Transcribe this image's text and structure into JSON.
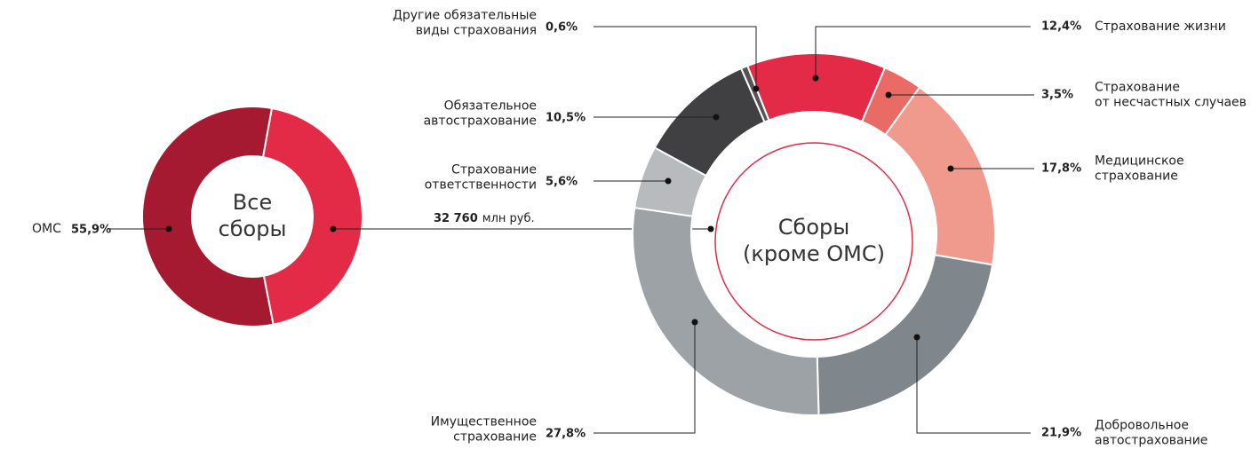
{
  "chart_data": [
    {
      "type": "pie",
      "center_label": "Все\nсборы",
      "categories": [
        "ОМС",
        null
      ],
      "values": [
        55.9,
        44.1
      ],
      "value_labels": [
        "55,9%",
        null
      ],
      "colors": [
        "#a51a30",
        "#e32a46"
      ],
      "annotation": {
        "amount": "32 760",
        "unit": "млн руб."
      }
    },
    {
      "type": "pie",
      "center_label": "Сборы\n(кроме ОМС)",
      "categories": [
        "Страхование жизни",
        "Страхование\nот несчастных случаев",
        "Медицинское\nстрахование",
        "Добровольное\nавтострахование",
        "Имущественное\nстрахование",
        "Страхование\nответственности",
        "Обязательное\nавтострахование",
        "Другие обязательные\nвиды страхования"
      ],
      "values": [
        12.4,
        3.5,
        17.8,
        21.9,
        27.8,
        5.6,
        10.5,
        0.6
      ],
      "value_labels": [
        "12,4%",
        "3,5%",
        "17,8%",
        "21,9%",
        "27,8%",
        "5,6%",
        "10,5%",
        "0,6%"
      ],
      "colors": [
        "#e32a46",
        "#ea6a65",
        "#ef9a8d",
        "#80878c",
        "#9ca2a5",
        "#b7bbbd",
        "#404042",
        "#555557"
      ]
    }
  ]
}
